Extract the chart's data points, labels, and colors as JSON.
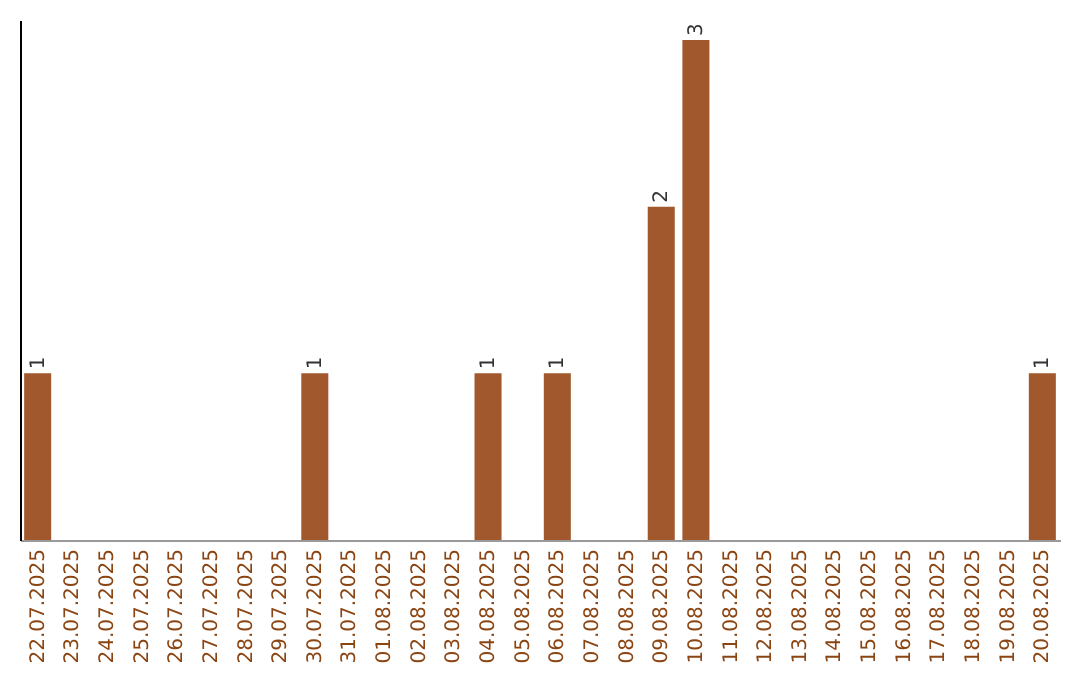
{
  "chart_data": {
    "type": "bar",
    "categories": [
      "22.07.2025",
      "23.07.2025",
      "24.07.2025",
      "25.07.2025",
      "26.07.2025",
      "27.07.2025",
      "28.07.2025",
      "29.07.2025",
      "30.07.2025",
      "31.07.2025",
      "01.08.2025",
      "02.08.2025",
      "03.08.2025",
      "04.08.2025",
      "05.08.2025",
      "06.08.2025",
      "07.08.2025",
      "08.08.2025",
      "09.08.2025",
      "10.08.2025",
      "11.08.2025",
      "12.08.2025",
      "13.08.2025",
      "14.08.2025",
      "15.08.2025",
      "16.08.2025",
      "17.08.2025",
      "18.08.2025",
      "19.08.2025",
      "20.08.2025"
    ],
    "values": [
      1,
      0,
      0,
      0,
      0,
      0,
      0,
      0,
      1,
      0,
      0,
      0,
      0,
      1,
      0,
      1,
      0,
      0,
      2,
      3,
      0,
      0,
      0,
      0,
      0,
      0,
      0,
      0,
      0,
      1
    ],
    "value_labels": [
      "1",
      null,
      null,
      null,
      null,
      null,
      null,
      null,
      "1",
      null,
      null,
      null,
      null,
      "1",
      null,
      "1",
      null,
      null,
      "2",
      "3",
      null,
      null,
      null,
      null,
      null,
      null,
      null,
      null,
      null,
      "1"
    ],
    "color": "#a0582c",
    "ylim": [
      0,
      3.12
    ],
    "tick_labels": "x"
  }
}
